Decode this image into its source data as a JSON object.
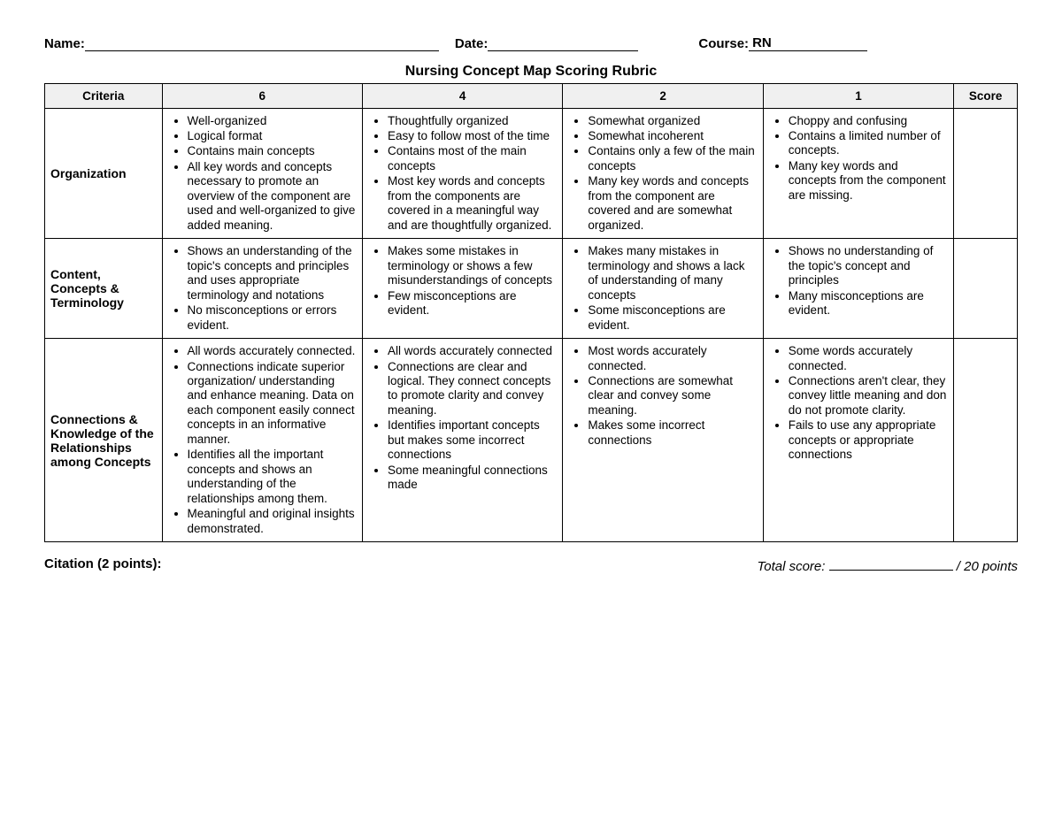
{
  "header": {
    "name_label": "Name:",
    "date_label": "Date:",
    "course_label": "Course:",
    "course_value": "RN"
  },
  "title": "Nursing Concept Map Scoring Rubric",
  "table": {
    "columns": [
      "Criteria",
      "6",
      "4",
      "2",
      "1",
      "Score"
    ],
    "col_widths": [
      "12%",
      "20.5%",
      "20.5%",
      "20.5%",
      "19.5%",
      "6.5%"
    ],
    "rows": [
      {
        "criteria": "Organization",
        "c6": [
          "Well-organized",
          "Logical format",
          "Contains main concepts",
          "All key words and concepts necessary to promote an overview of the component are used and well-organized to give added meaning."
        ],
        "c4": [
          "Thoughtfully organized",
          "Easy to follow most of the time",
          "Contains most of the main concepts",
          "Most key words and concepts from the components are covered in a meaningful way and are thoughtfully organized."
        ],
        "c2": [
          "Somewhat organized",
          "Somewhat incoherent",
          "Contains only a few of the main concepts",
          "Many key words and concepts from the component are covered and are somewhat organized."
        ],
        "c1": [
          "Choppy and confusing",
          "Contains a limited number of concepts.",
          "Many key words and concepts from the component are missing."
        ]
      },
      {
        "criteria": "Content, Concepts & Terminology",
        "c6": [
          "Shows an understanding of the topic's concepts and principles and uses appropriate terminology and notations",
          "No misconceptions or errors evident."
        ],
        "c4": [
          "Makes some mistakes in terminology or shows a few misunderstandings of concepts",
          "Few misconceptions are evident."
        ],
        "c2": [
          "Makes many mistakes in terminology and shows a lack of understanding of many concepts",
          "Some misconceptions are evident."
        ],
        "c1": [
          "Shows no understanding of the topic's concept and principles",
          "Many misconceptions are evident."
        ]
      },
      {
        "criteria": "Connections & Knowledge of the Relationships among Concepts",
        "c6": [
          "All words accurately connected.",
          "Connections indicate superior organization/ understanding and enhance meaning. Data on each component easily connect concepts in an informative manner.",
          "Identifies all the important concepts and shows an understanding of the relationships among them.",
          "Meaningful and original insights demonstrated."
        ],
        "c4": [
          "All words accurately connected",
          "Connections are clear and logical. They connect concepts to promote clarity and convey meaning.",
          "Identifies important concepts but makes some incorrect connections",
          "Some meaningful connections made"
        ],
        "c2": [
          "Most words accurately connected.",
          "Connections are somewhat clear and convey some meaning.",
          "Makes some incorrect connections"
        ],
        "c1": [
          "Some words accurately connected.",
          "Connections aren't clear, they convey little meaning and don do not promote clarity.",
          "Fails to use any appropriate concepts or appropriate connections"
        ]
      }
    ]
  },
  "footer": {
    "citation_label": "Citation (2 points):",
    "total_label_pre": "Total score:",
    "total_label_post": "/ 20 points"
  }
}
